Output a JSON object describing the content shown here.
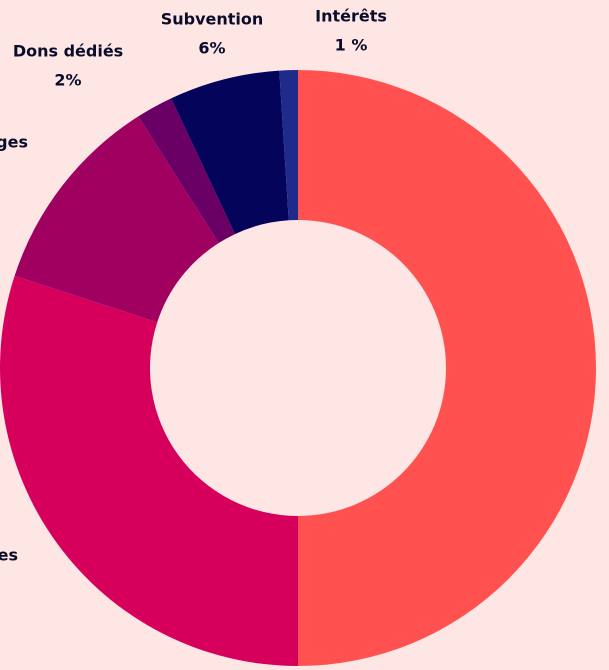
{
  "chart_data": {
    "type": "donut",
    "categories": [
      null,
      "es",
      "ges",
      "Dons dédiés",
      "Subvention",
      "Intérêts"
    ],
    "values": [
      50,
      30,
      11,
      2,
      6,
      1
    ],
    "value_labels": [
      null,
      null,
      null,
      "2%",
      "6%",
      "1 %"
    ],
    "colors": [
      "#ff5250",
      "#d6005c",
      "#a0005f",
      "#6a0066",
      "#03045a",
      "#1f2a8a"
    ]
  }
}
